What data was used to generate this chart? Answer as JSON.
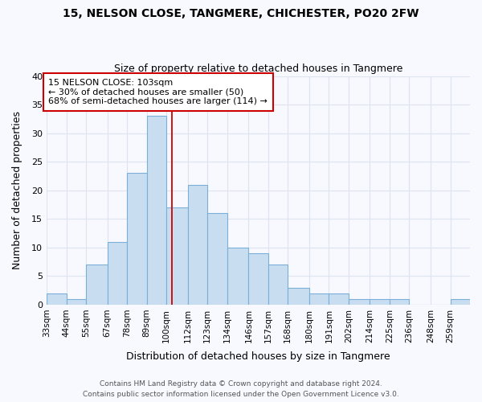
{
  "title1": "15, NELSON CLOSE, TANGMERE, CHICHESTER, PO20 2FW",
  "title2": "Size of property relative to detached houses in Tangmere",
  "xlabel": "Distribution of detached houses by size in Tangmere",
  "ylabel": "Number of detached properties",
  "bin_edges": [
    33,
    44,
    55,
    67,
    78,
    89,
    100,
    112,
    123,
    134,
    146,
    157,
    168,
    180,
    191,
    202,
    214,
    225,
    236,
    248,
    259
  ],
  "bar_heights": [
    2,
    1,
    7,
    11,
    23,
    33,
    17,
    21,
    16,
    10,
    9,
    7,
    3,
    2,
    2,
    1,
    1,
    1,
    0,
    0,
    1
  ],
  "bar_facecolor": "#c9ddf0",
  "bar_edgecolor": "#7ab0d8",
  "red_line_x": 103,
  "annotation_title": "15 NELSON CLOSE: 103sqm",
  "annotation_line1": "← 30% of detached houses are smaller (50)",
  "annotation_line2": "68% of semi-detached houses are larger (114) →",
  "annotation_box_color": "#ffffff",
  "annotation_box_edgecolor": "#cc0000",
  "red_line_color": "#cc0000",
  "ylim": [
    0,
    40
  ],
  "yticks": [
    0,
    5,
    10,
    15,
    20,
    25,
    30,
    35,
    40
  ],
  "footer1": "Contains HM Land Registry data © Crown copyright and database right 2024.",
  "footer2": "Contains public sector information licensed under the Open Government Licence v3.0.",
  "bg_color": "#f8f9ff",
  "grid_color": "#dde4f0"
}
